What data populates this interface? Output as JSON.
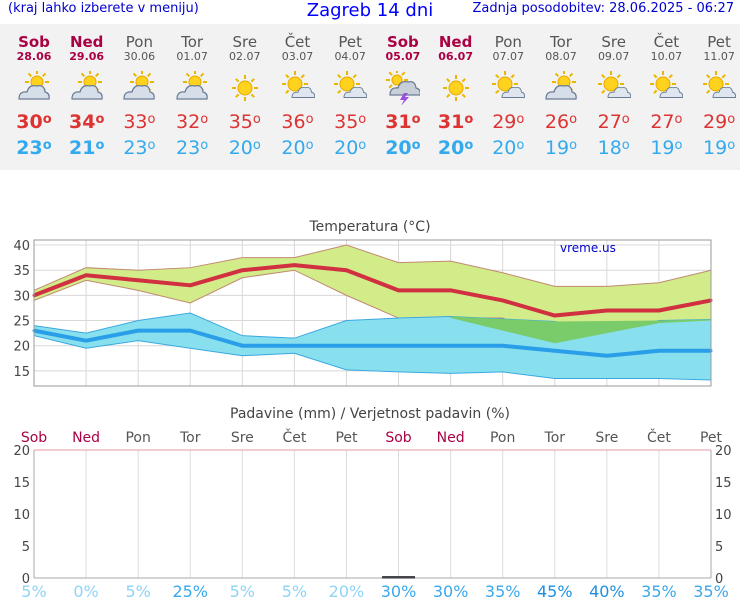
{
  "header": {
    "menu_hint": "(kraj lahko izberete v meniju)",
    "title": "Zagreb 14 dni",
    "updated": "Zadnja posodobitev: 28.06.2025 - 06:27"
  },
  "days": [
    {
      "name": "Sob",
      "date": "28.06",
      "weekend": true,
      "icon": "partly-cloudy-icon",
      "max": "30",
      "min": "23"
    },
    {
      "name": "Ned",
      "date": "29.06",
      "weekend": true,
      "icon": "partly-cloudy-icon",
      "max": "34",
      "min": "21"
    },
    {
      "name": "Pon",
      "date": "30.06",
      "weekend": false,
      "icon": "partly-cloudy-icon",
      "max": "33",
      "min": "23"
    },
    {
      "name": "Tor",
      "date": "01.07",
      "weekend": false,
      "icon": "partly-cloudy-icon",
      "max": "32",
      "min": "23"
    },
    {
      "name": "Sre",
      "date": "02.07",
      "weekend": false,
      "icon": "sunny-icon",
      "max": "35",
      "min": "20"
    },
    {
      "name": "Čet",
      "date": "03.07",
      "weekend": false,
      "icon": "mostly-sunny-icon",
      "max": "36",
      "min": "20"
    },
    {
      "name": "Pet",
      "date": "04.07",
      "weekend": false,
      "icon": "mostly-sunny-icon",
      "max": "35",
      "min": "20"
    },
    {
      "name": "Sob",
      "date": "05.07",
      "weekend": true,
      "icon": "thunderstorm-icon",
      "max": "31",
      "min": "20"
    },
    {
      "name": "Ned",
      "date": "06.07",
      "weekend": true,
      "icon": "sunny-icon",
      "max": "31",
      "min": "20"
    },
    {
      "name": "Pon",
      "date": "07.07",
      "weekend": false,
      "icon": "mostly-sunny-icon",
      "max": "29",
      "min": "20"
    },
    {
      "name": "Tor",
      "date": "08.07",
      "weekend": false,
      "icon": "partly-cloudy-icon",
      "max": "26",
      "min": "19"
    },
    {
      "name": "Sre",
      "date": "09.07",
      "weekend": false,
      "icon": "mostly-sunny-icon",
      "max": "27",
      "min": "18"
    },
    {
      "name": "Čet",
      "date": "10.07",
      "weekend": false,
      "icon": "mostly-sunny-icon",
      "max": "27",
      "min": "19"
    },
    {
      "name": "Pet",
      "date": "11.07",
      "weekend": false,
      "icon": "mostly-sunny-icon",
      "max": "29",
      "min": "19"
    }
  ],
  "colors": {
    "max_line": "#d03040",
    "min_line": "#2a9ee8",
    "max_band": "#d2ec8a",
    "min_band": "#88e0ee",
    "overlap": "#7acc6a",
    "weekend": "#aa0044",
    "weekday": "#555555"
  },
  "chart_data": [
    {
      "type": "area",
      "title": "Temperatura (°C)",
      "watermark": "vreme.us",
      "ylim": [
        12,
        41
      ],
      "yticks": [
        15,
        20,
        25,
        30,
        35,
        40
      ],
      "categories": [
        "Sob",
        "Ned",
        "Pon",
        "Tor",
        "Sre",
        "Čet",
        "Pet",
        "Sob",
        "Ned",
        "Pon",
        "Tor",
        "Sre",
        "Čet",
        "Pet"
      ],
      "series": [
        {
          "name": "max",
          "values": [
            30,
            34,
            33,
            32,
            35,
            36,
            35,
            31,
            31,
            29,
            26,
            27,
            27,
            29
          ],
          "upper": [
            31,
            35.5,
            35,
            35.5,
            37.5,
            37.5,
            40,
            36.5,
            36.8,
            34.5,
            31.8,
            31.8,
            32.5,
            35
          ],
          "lower": [
            29,
            33,
            31,
            28.5,
            33.5,
            35,
            30,
            25.5,
            25.5,
            25.5,
            20.5,
            24,
            24.5,
            25
          ]
        },
        {
          "name": "min",
          "values": [
            23,
            21,
            23,
            23,
            20,
            20,
            20,
            20,
            20,
            20,
            19,
            18,
            19,
            19
          ],
          "upper": [
            24,
            22.5,
            25,
            26.5,
            22,
            21.5,
            25,
            25.5,
            25.8,
            25.3,
            24.8,
            22.8,
            25,
            25.2
          ],
          "lower": [
            22,
            19.5,
            21,
            19.5,
            18,
            18.5,
            15.2,
            14.8,
            14.5,
            14.8,
            13.5,
            13.5,
            13.5,
            13.2
          ]
        }
      ]
    },
    {
      "type": "bar",
      "title": "Padavine (mm) / Verjetnost padavin (%)",
      "ylim": [
        0,
        20
      ],
      "yticks": [
        0,
        5,
        10,
        15,
        20
      ],
      "categories": [
        "Sob",
        "Ned",
        "Pon",
        "Tor",
        "Sre",
        "Čet",
        "Pet",
        "Sob",
        "Ned",
        "Pon",
        "Tor",
        "Sre",
        "Čet",
        "Pet"
      ],
      "precip_mm": [
        0,
        0,
        0,
        0,
        0,
        0,
        0,
        0.2,
        0,
        0,
        0,
        0,
        0,
        0
      ],
      "probability": [
        "5%",
        "0%",
        "5%",
        "25%",
        "5%",
        "5%",
        "20%",
        "30%",
        "30%",
        "35%",
        "45%",
        "40%",
        "35%",
        "35%"
      ],
      "probability_values": [
        5,
        0,
        5,
        25,
        5,
        5,
        20,
        30,
        30,
        35,
        45,
        40,
        35,
        35
      ]
    }
  ]
}
